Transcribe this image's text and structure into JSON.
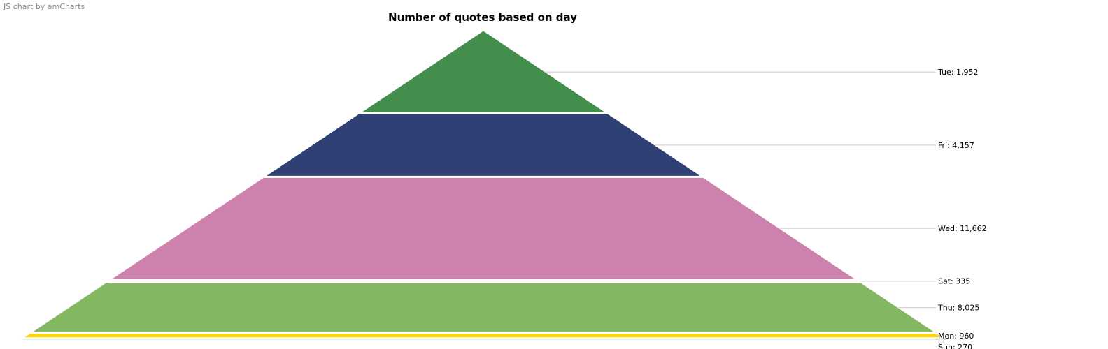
{
  "credit_text": "JS chart by amCharts",
  "chart_data": {
    "type": "pyramid",
    "title": "Number of quotes based on day",
    "slices": [
      {
        "label": "Tue",
        "value": 1952,
        "display": "1,952",
        "color": "#448e4d"
      },
      {
        "label": "Fri",
        "value": 4157,
        "display": "4,157",
        "color": "#2f4074"
      },
      {
        "label": "Wed",
        "value": 11662,
        "display": "11,662",
        "color": "#cd82ad"
      },
      {
        "label": "Sat",
        "value": 335,
        "display": "335",
        "color": "#b7483e"
      },
      {
        "label": "Thu",
        "value": 8025,
        "display": "8,025",
        "color": "#84b761"
      },
      {
        "label": "Mon",
        "value": 960,
        "display": "960",
        "color": "#fdd400"
      },
      {
        "label": "Sun",
        "value": 270,
        "display": "270",
        "color": "#67b7dc"
      }
    ]
  }
}
